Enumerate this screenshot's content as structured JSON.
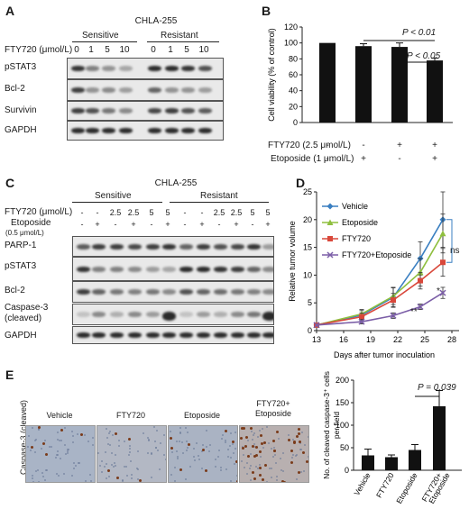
{
  "panels": {
    "a": "A",
    "b": "B",
    "c": "C",
    "d": "D",
    "e": "E"
  },
  "panelA": {
    "cell_line": "CHLA-255",
    "groups": [
      "Sensitive",
      "Resistant"
    ],
    "dose_label": "FTY720 (μmol/L)",
    "doses": [
      "0",
      "1",
      "5",
      "10",
      "0",
      "1",
      "5",
      "10"
    ],
    "rows": [
      "pSTAT3",
      "Bcl-2",
      "Survivin",
      "GAPDH"
    ]
  },
  "panelB": {
    "p1": "P < 0.01",
    "p2": "P < 0.05",
    "treat1_label": "FTY720 (2.5 μmol/L)",
    "treat1": [
      "-",
      "-",
      "+",
      "+"
    ],
    "treat2_label": "Etoposide (1 μmol/L)",
    "treat2": [
      "-",
      "+",
      "-",
      "+"
    ]
  },
  "panelC": {
    "cell_line": "CHLA-255",
    "groups": [
      "Sensitive",
      "Resistant"
    ],
    "fty_label": "FTY720 (μmol/L)",
    "fty": [
      "-",
      "-",
      "2.5",
      "2.5",
      "5",
      "5",
      "-",
      "-",
      "2.5",
      "2.5",
      "5",
      "5"
    ],
    "eto_label": "Etoposide",
    "eto_sub": "(0.5 μmol/L)",
    "eto": [
      "-",
      "+",
      "-",
      "+",
      "-",
      "+",
      "-",
      "+",
      "-",
      "+",
      "-",
      "+"
    ],
    "rows": [
      "PARP-1",
      "pSTAT3",
      "Bcl-2",
      "Caspase-3",
      "GAPDH"
    ],
    "row_sub": "(cleaved)"
  },
  "panelD": {
    "ns": "ns",
    "star1": "*",
    "star2": "**"
  },
  "panelE": {
    "side_label": "Caspase-3 (cleaved)",
    "images": [
      "Vehicle",
      "FTY720",
      "Etoposide",
      "FTY720+\nEtoposide"
    ],
    "p": "P = 0.039"
  },
  "chart_data": [
    {
      "type": "bar",
      "panel": "B",
      "ylabel": "Cell viability (% of control)",
      "ylim": [
        0,
        120
      ],
      "yticks": [
        0,
        20,
        40,
        60,
        80,
        100,
        120
      ],
      "categories": [
        "1",
        "2",
        "3",
        "4"
      ],
      "values": [
        100,
        96,
        95,
        78
      ],
      "errors": [
        0,
        3,
        5,
        3
      ],
      "color": "#111111"
    },
    {
      "type": "line",
      "panel": "D",
      "xlabel": "Days after tumor inoculation",
      "ylabel": "Relative tumor volume",
      "xlim": [
        13,
        28
      ],
      "ylim": [
        0,
        25
      ],
      "xticks": [
        13,
        16,
        19,
        22,
        25,
        28
      ],
      "yticks": [
        0,
        5,
        10,
        15,
        20,
        25
      ],
      "legend_position": "top-left",
      "series": [
        {
          "name": "Vehicle",
          "color": "#3a7fc1",
          "marker": "diamond",
          "x": [
            13,
            18,
            21.5,
            24.5,
            27
          ],
          "y": [
            1,
            2.8,
            6,
            13,
            20
          ],
          "err": [
            0,
            0.8,
            1.8,
            3,
            5
          ]
        },
        {
          "name": "Etoposide",
          "color": "#8fbf3f",
          "marker": "triangle",
          "x": [
            13,
            18,
            21.5,
            24.5,
            27
          ],
          "y": [
            1,
            3,
            6.2,
            10.5,
            17.5
          ],
          "err": [
            0,
            0.8,
            1.5,
            2.5,
            3.5
          ]
        },
        {
          "name": "FTY720",
          "color": "#d9483b",
          "marker": "square",
          "x": [
            13,
            18,
            21.5,
            24.5,
            27
          ],
          "y": [
            1,
            2.5,
            5.5,
            9,
            12.3
          ],
          "err": [
            0,
            0.7,
            1.2,
            1.5,
            2.5
          ]
        },
        {
          "name": "FTY720+Etoposide",
          "color": "#7b5ea7",
          "marker": "x",
          "x": [
            13,
            18,
            21.5,
            24.5,
            27
          ],
          "y": [
            1,
            1.6,
            2.7,
            4.3,
            6.8
          ],
          "err": [
            0,
            0.4,
            0.5,
            0.5,
            1
          ]
        }
      ]
    },
    {
      "type": "bar",
      "panel": "E",
      "ylabel": "No. of cleaved caspase-3⁺ cells per field",
      "ylim": [
        0,
        200
      ],
      "yticks": [
        0,
        50,
        100,
        150,
        200
      ],
      "categories": [
        "Vehicle",
        "FTY720",
        "Etoposide",
        "FTY720+\nEtoposide"
      ],
      "values": [
        33,
        29,
        45,
        142
      ],
      "errors": [
        14,
        5,
        12,
        35
      ],
      "color": "#111111"
    }
  ]
}
